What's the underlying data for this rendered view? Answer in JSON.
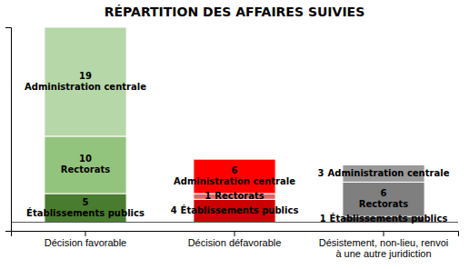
{
  "chart_data": {
    "type": "bar",
    "title": "RÉPARTITION DES AFFAIRES SUIVIES",
    "categories": [
      "Décision favorable",
      "Décision défavorable",
      "Désistement, non-lieu, renvoi\nà une autre juridiction"
    ],
    "series": [
      {
        "name": "Établissements publics",
        "values": [
          5,
          4,
          1
        ],
        "colors": [
          "#4a7c2f",
          "#cc0000",
          "#595959"
        ]
      },
      {
        "name": "Rectorats",
        "values": [
          10,
          1,
          6
        ],
        "colors": [
          "#93c47d",
          "#e06666",
          "#7f7f7f"
        ]
      },
      {
        "name": "Administration centrale",
        "values": [
          19,
          6,
          3
        ],
        "colors": [
          "#b6d7a8",
          "#ff0000",
          "#999999"
        ]
      }
    ],
    "stacked": true,
    "data_labels": true,
    "grid": false,
    "tick_labels": "x",
    "ylim": [
      -1.5,
      34
    ],
    "yticks": []
  }
}
